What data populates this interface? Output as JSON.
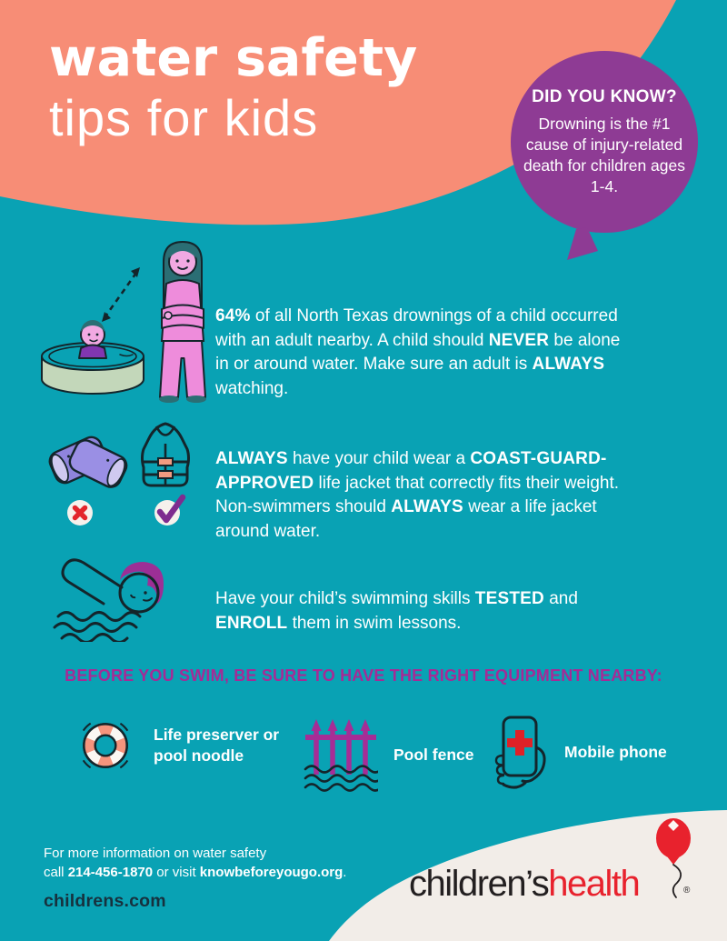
{
  "colors": {
    "background_teal": "#09A2B4",
    "header_coral": "#F78D76",
    "balloon_purple": "#8E3B94",
    "heading_magenta": "#A52B96",
    "text_white": "#FFFFFF",
    "footer_cream": "#F2EDE8",
    "logo_red": "#E8222D",
    "logo_black": "#231F20",
    "alert_red": "#E3252B",
    "check_purple": "#7E2C8F",
    "floatie_lavender": "#9A8FE4",
    "pool_sage": "#C3D7BA",
    "figure_pink": "#EE8CDB",
    "site_dark": "#17313E"
  },
  "header": {
    "title_line1": "water safety",
    "title_line2": "tips for kids",
    "balloon": {
      "heading": "DID YOU KNOW?",
      "body": "Drowning is the #1 cause of injury-related death for children ages 1-4."
    }
  },
  "tips": [
    {
      "icon": "adult-supervision-illustration",
      "segments": [
        {
          "t": "64%",
          "b": true
        },
        {
          "t": " of all North Texas drownings of a child occurred with an adult nearby. A child should ",
          "b": false
        },
        {
          "t": "NEVER",
          "b": true
        },
        {
          "t": " be alone in or around water. Make sure an adult is ",
          "b": false
        },
        {
          "t": "ALWAYS",
          "b": true
        },
        {
          "t": " watching.",
          "b": false
        }
      ]
    },
    {
      "icon": "life-jacket-comparison",
      "segments": [
        {
          "t": "ALWAYS",
          "b": true
        },
        {
          "t": " have your child wear a ",
          "b": false
        },
        {
          "t": "COAST-GUARD-APPROVED",
          "b": true
        },
        {
          "t": " life jacket that correctly fits their weight. Non-swimmers should ",
          "b": false
        },
        {
          "t": "ALWAYS",
          "b": true
        },
        {
          "t": " wear a life jacket around water.",
          "b": false
        }
      ]
    },
    {
      "icon": "swimmer",
      "segments": [
        {
          "t": "Have your child’s swimming skills ",
          "b": false
        },
        {
          "t": "TESTED",
          "b": true
        },
        {
          "t": " and ",
          "b": false
        },
        {
          "t": "ENROLL",
          "b": true
        },
        {
          "t": " them in swim lessons.",
          "b": false
        }
      ]
    }
  ],
  "equipment": {
    "heading": "BEFORE YOU SWIM, BE SURE TO HAVE THE RIGHT EQUIPMENT NEARBY:",
    "items": [
      {
        "icon": "life-preserver-icon",
        "label": "Life preserver or pool noodle"
      },
      {
        "icon": "pool-fence-icon",
        "label": "Pool fence"
      },
      {
        "icon": "mobile-phone-icon",
        "label": "Mobile phone"
      }
    ]
  },
  "footer": {
    "info_line1": "For more information on water safety",
    "info_line2_segments": [
      {
        "t": "call ",
        "b": false
      },
      {
        "t": "214-456-1870",
        "b": true
      },
      {
        "t": " or visit ",
        "b": false
      },
      {
        "t": "knowbeforeyougo.org",
        "b": true
      },
      {
        "t": ".",
        "b": false
      }
    ],
    "website": "childrens.com",
    "logo": {
      "part1": "children’s",
      "part2": "health",
      "registered": "®"
    }
  }
}
